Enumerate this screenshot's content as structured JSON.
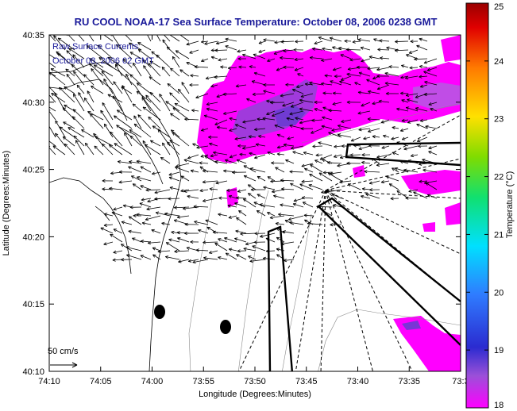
{
  "title": "RU COOL  NOAA-17  Sea Surface Temperature:  October 08, 2006 0238 GMT",
  "legend": {
    "line1": "Raw Surface Currents",
    "line2": "October 08, 2006 02 GMT"
  },
  "axes": {
    "xlabel": "Longitude (Degrees:Minutes)",
    "ylabel": "Latitude (Degrees:Minutes)",
    "xticks": [
      "74:10",
      "74:05",
      "74:00",
      "73:55",
      "73:50",
      "73:45",
      "73:40",
      "73:35",
      "73:3"
    ],
    "yticks": [
      "40:35",
      "40:30",
      "40:25",
      "40:20",
      "40:15",
      "40:10"
    ]
  },
  "scale": {
    "label": "50 cm/s"
  },
  "colorbar": {
    "label": "Temperature (°C)",
    "ticks": [
      "25",
      "24",
      "23",
      "22",
      "21",
      "20",
      "19",
      "18"
    ],
    "min": 18,
    "max": 25
  },
  "colors": {
    "land_outline": "#000000",
    "warm": "#ff00ff",
    "cool": "#5a3cc8",
    "title": "#1a1a9a"
  }
}
